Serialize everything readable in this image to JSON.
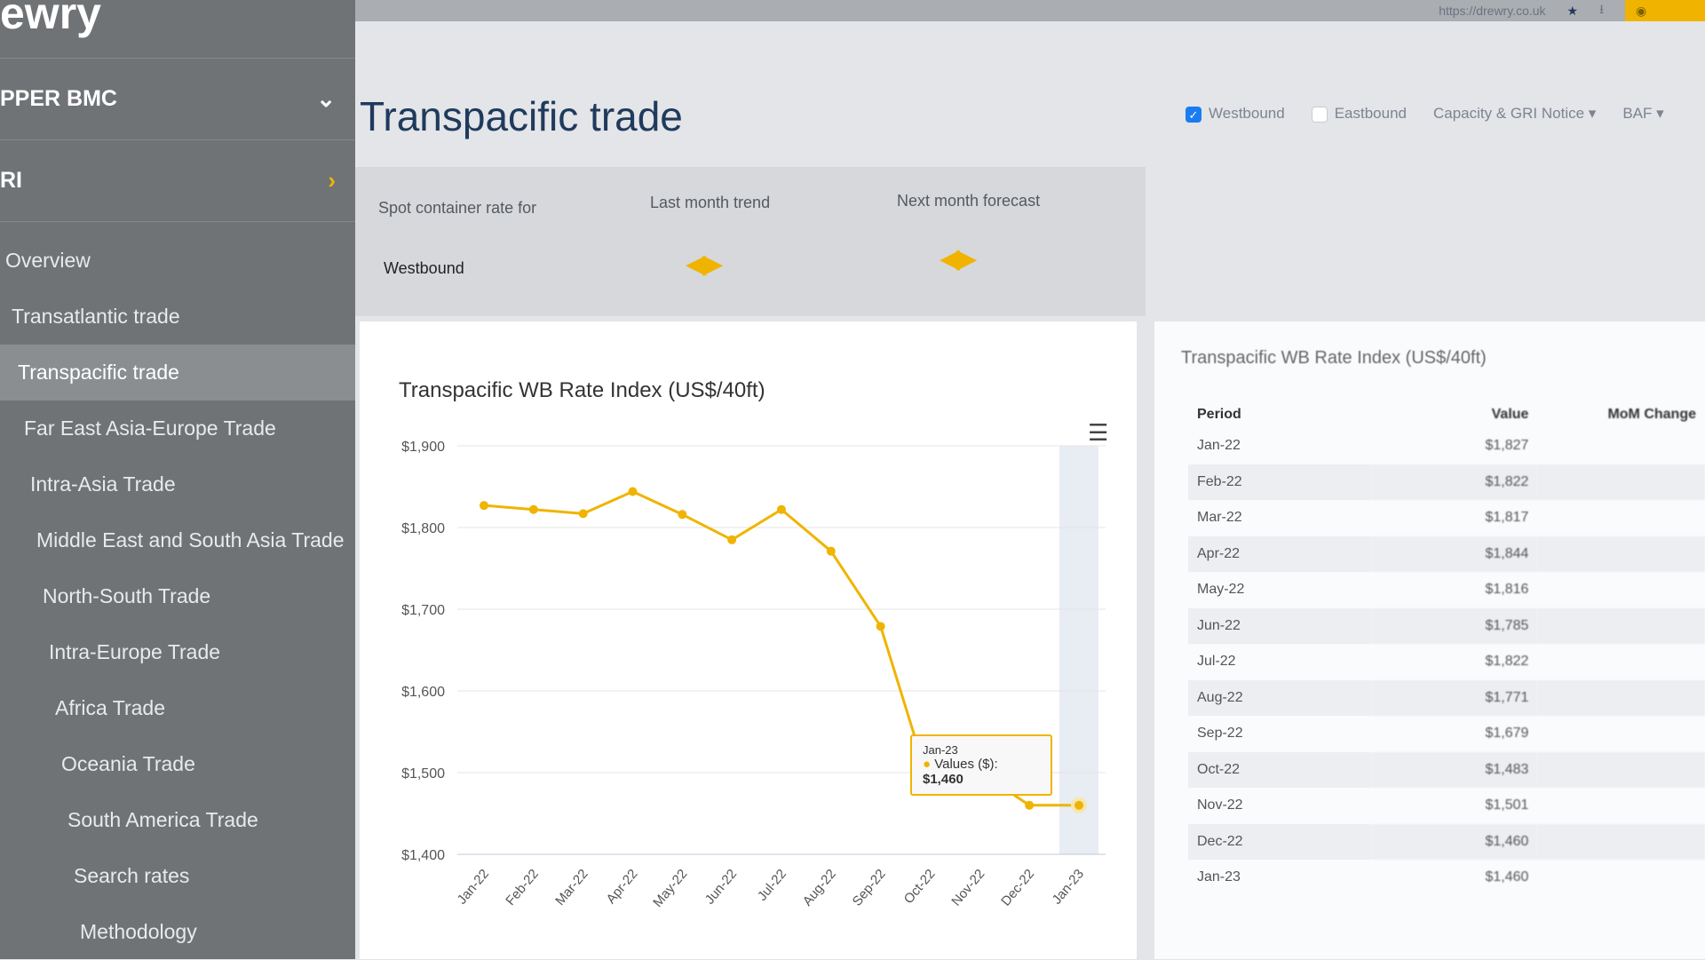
{
  "sidebar": {
    "logo": "ewry",
    "section1": "PPER BMC",
    "section2": "RI",
    "items": [
      "Overview",
      "Transatlantic trade",
      "Transpacific trade",
      "Far East Asia-Europe Trade",
      "Intra-Asia Trade",
      "Middle East and South Asia Trade",
      "North-South Trade",
      "Intra-Europe Trade",
      "Africa Trade",
      "Oceania Trade",
      "South America Trade",
      "Search rates",
      "Methodology"
    ],
    "active": "Transpacific trade"
  },
  "topbar": {
    "url": "https://drewry.co.uk"
  },
  "page": {
    "title": "Transpacific trade"
  },
  "filters": {
    "westbound": "Westbound",
    "westbound_checked": true,
    "eastbound": "Eastbound",
    "eastbound_checked": false,
    "dropdown1": "Capacity & GRI Notice",
    "dropdown2": "BAF"
  },
  "summary": {
    "label1": "Spot container rate for",
    "direction": "Westbound",
    "label2": "Last month trend",
    "label3": "Next month forecast",
    "trend": "flat",
    "forecast": "flat"
  },
  "accent": "#f0b400",
  "chart_data": {
    "type": "line",
    "title": "Transpacific WB Rate Index (US$/40ft)",
    "categories": [
      "Jan-22",
      "Feb-22",
      "Mar-22",
      "Apr-22",
      "May-22",
      "Jun-22",
      "Jul-22",
      "Aug-22",
      "Sep-22",
      "Oct-22",
      "Nov-22",
      "Dec-22",
      "Jan-23"
    ],
    "series": [
      {
        "name": "Values ($)",
        "values": [
          1827,
          1822,
          1817,
          1844,
          1816,
          1785,
          1822,
          1771,
          1679,
          1483,
          1501,
          1460,
          1460
        ]
      }
    ],
    "ylim": [
      1400,
      1900
    ],
    "yticks": [
      "$1,900",
      "$1,800",
      "$1,700",
      "$1,600",
      "$1,500",
      "$1,400"
    ],
    "grid": true,
    "tooltip": {
      "period": "Jan-23",
      "label": "Values ($):",
      "value": "$1,460"
    }
  },
  "table": {
    "title": "Transpacific WB Rate Index (US$/40ft)",
    "headers": [
      "Period",
      "Value",
      "MoM Change"
    ],
    "rows": [
      [
        "Jan-22",
        "$1,827"
      ],
      [
        "Feb-22",
        "$1,822"
      ],
      [
        "Mar-22",
        "$1,817"
      ],
      [
        "Apr-22",
        "$1,844"
      ],
      [
        "May-22",
        "$1,816"
      ],
      [
        "Jun-22",
        "$1,785"
      ],
      [
        "Jul-22",
        "$1,822"
      ],
      [
        "Aug-22",
        "$1,771"
      ],
      [
        "Sep-22",
        "$1,679"
      ],
      [
        "Oct-22",
        "$1,483"
      ],
      [
        "Nov-22",
        "$1,501"
      ],
      [
        "Dec-22",
        "$1,460"
      ],
      [
        "Jan-23",
        "$1,460"
      ]
    ]
  }
}
